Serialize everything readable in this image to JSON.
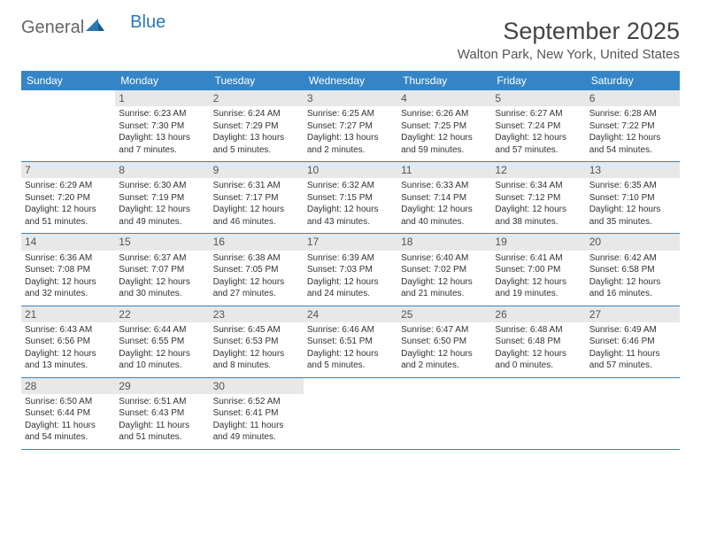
{
  "brand": {
    "text1": "General",
    "text2": "Blue",
    "color1": "#666666",
    "color2": "#2878b8",
    "icon_color": "#2878b8"
  },
  "title": "September 2025",
  "location": "Walton Park, New York, United States",
  "colors": {
    "header_bg": "#3585c6",
    "header_text": "#ffffff",
    "border": "#3585c6",
    "daynum_bg": "#e8e8e8",
    "text": "#333333"
  },
  "weekdays": [
    "Sunday",
    "Monday",
    "Tuesday",
    "Wednesday",
    "Thursday",
    "Friday",
    "Saturday"
  ],
  "weeks": [
    [
      null,
      {
        "n": "1",
        "sr": "6:23 AM",
        "ss": "7:30 PM",
        "dl": "13 hours and 7 minutes."
      },
      {
        "n": "2",
        "sr": "6:24 AM",
        "ss": "7:29 PM",
        "dl": "13 hours and 5 minutes."
      },
      {
        "n": "3",
        "sr": "6:25 AM",
        "ss": "7:27 PM",
        "dl": "13 hours and 2 minutes."
      },
      {
        "n": "4",
        "sr": "6:26 AM",
        "ss": "7:25 PM",
        "dl": "12 hours and 59 minutes."
      },
      {
        "n": "5",
        "sr": "6:27 AM",
        "ss": "7:24 PM",
        "dl": "12 hours and 57 minutes."
      },
      {
        "n": "6",
        "sr": "6:28 AM",
        "ss": "7:22 PM",
        "dl": "12 hours and 54 minutes."
      }
    ],
    [
      {
        "n": "7",
        "sr": "6:29 AM",
        "ss": "7:20 PM",
        "dl": "12 hours and 51 minutes."
      },
      {
        "n": "8",
        "sr": "6:30 AM",
        "ss": "7:19 PM",
        "dl": "12 hours and 49 minutes."
      },
      {
        "n": "9",
        "sr": "6:31 AM",
        "ss": "7:17 PM",
        "dl": "12 hours and 46 minutes."
      },
      {
        "n": "10",
        "sr": "6:32 AM",
        "ss": "7:15 PM",
        "dl": "12 hours and 43 minutes."
      },
      {
        "n": "11",
        "sr": "6:33 AM",
        "ss": "7:14 PM",
        "dl": "12 hours and 40 minutes."
      },
      {
        "n": "12",
        "sr": "6:34 AM",
        "ss": "7:12 PM",
        "dl": "12 hours and 38 minutes."
      },
      {
        "n": "13",
        "sr": "6:35 AM",
        "ss": "7:10 PM",
        "dl": "12 hours and 35 minutes."
      }
    ],
    [
      {
        "n": "14",
        "sr": "6:36 AM",
        "ss": "7:08 PM",
        "dl": "12 hours and 32 minutes."
      },
      {
        "n": "15",
        "sr": "6:37 AM",
        "ss": "7:07 PM",
        "dl": "12 hours and 30 minutes."
      },
      {
        "n": "16",
        "sr": "6:38 AM",
        "ss": "7:05 PM",
        "dl": "12 hours and 27 minutes."
      },
      {
        "n": "17",
        "sr": "6:39 AM",
        "ss": "7:03 PM",
        "dl": "12 hours and 24 minutes."
      },
      {
        "n": "18",
        "sr": "6:40 AM",
        "ss": "7:02 PM",
        "dl": "12 hours and 21 minutes."
      },
      {
        "n": "19",
        "sr": "6:41 AM",
        "ss": "7:00 PM",
        "dl": "12 hours and 19 minutes."
      },
      {
        "n": "20",
        "sr": "6:42 AM",
        "ss": "6:58 PM",
        "dl": "12 hours and 16 minutes."
      }
    ],
    [
      {
        "n": "21",
        "sr": "6:43 AM",
        "ss": "6:56 PM",
        "dl": "12 hours and 13 minutes."
      },
      {
        "n": "22",
        "sr": "6:44 AM",
        "ss": "6:55 PM",
        "dl": "12 hours and 10 minutes."
      },
      {
        "n": "23",
        "sr": "6:45 AM",
        "ss": "6:53 PM",
        "dl": "12 hours and 8 minutes."
      },
      {
        "n": "24",
        "sr": "6:46 AM",
        "ss": "6:51 PM",
        "dl": "12 hours and 5 minutes."
      },
      {
        "n": "25",
        "sr": "6:47 AM",
        "ss": "6:50 PM",
        "dl": "12 hours and 2 minutes."
      },
      {
        "n": "26",
        "sr": "6:48 AM",
        "ss": "6:48 PM",
        "dl": "12 hours and 0 minutes."
      },
      {
        "n": "27",
        "sr": "6:49 AM",
        "ss": "6:46 PM",
        "dl": "11 hours and 57 minutes."
      }
    ],
    [
      {
        "n": "28",
        "sr": "6:50 AM",
        "ss": "6:44 PM",
        "dl": "11 hours and 54 minutes."
      },
      {
        "n": "29",
        "sr": "6:51 AM",
        "ss": "6:43 PM",
        "dl": "11 hours and 51 minutes."
      },
      {
        "n": "30",
        "sr": "6:52 AM",
        "ss": "6:41 PM",
        "dl": "11 hours and 49 minutes."
      },
      null,
      null,
      null,
      null
    ]
  ],
  "labels": {
    "sunrise": "Sunrise:",
    "sunset": "Sunset:",
    "daylight": "Daylight:"
  }
}
